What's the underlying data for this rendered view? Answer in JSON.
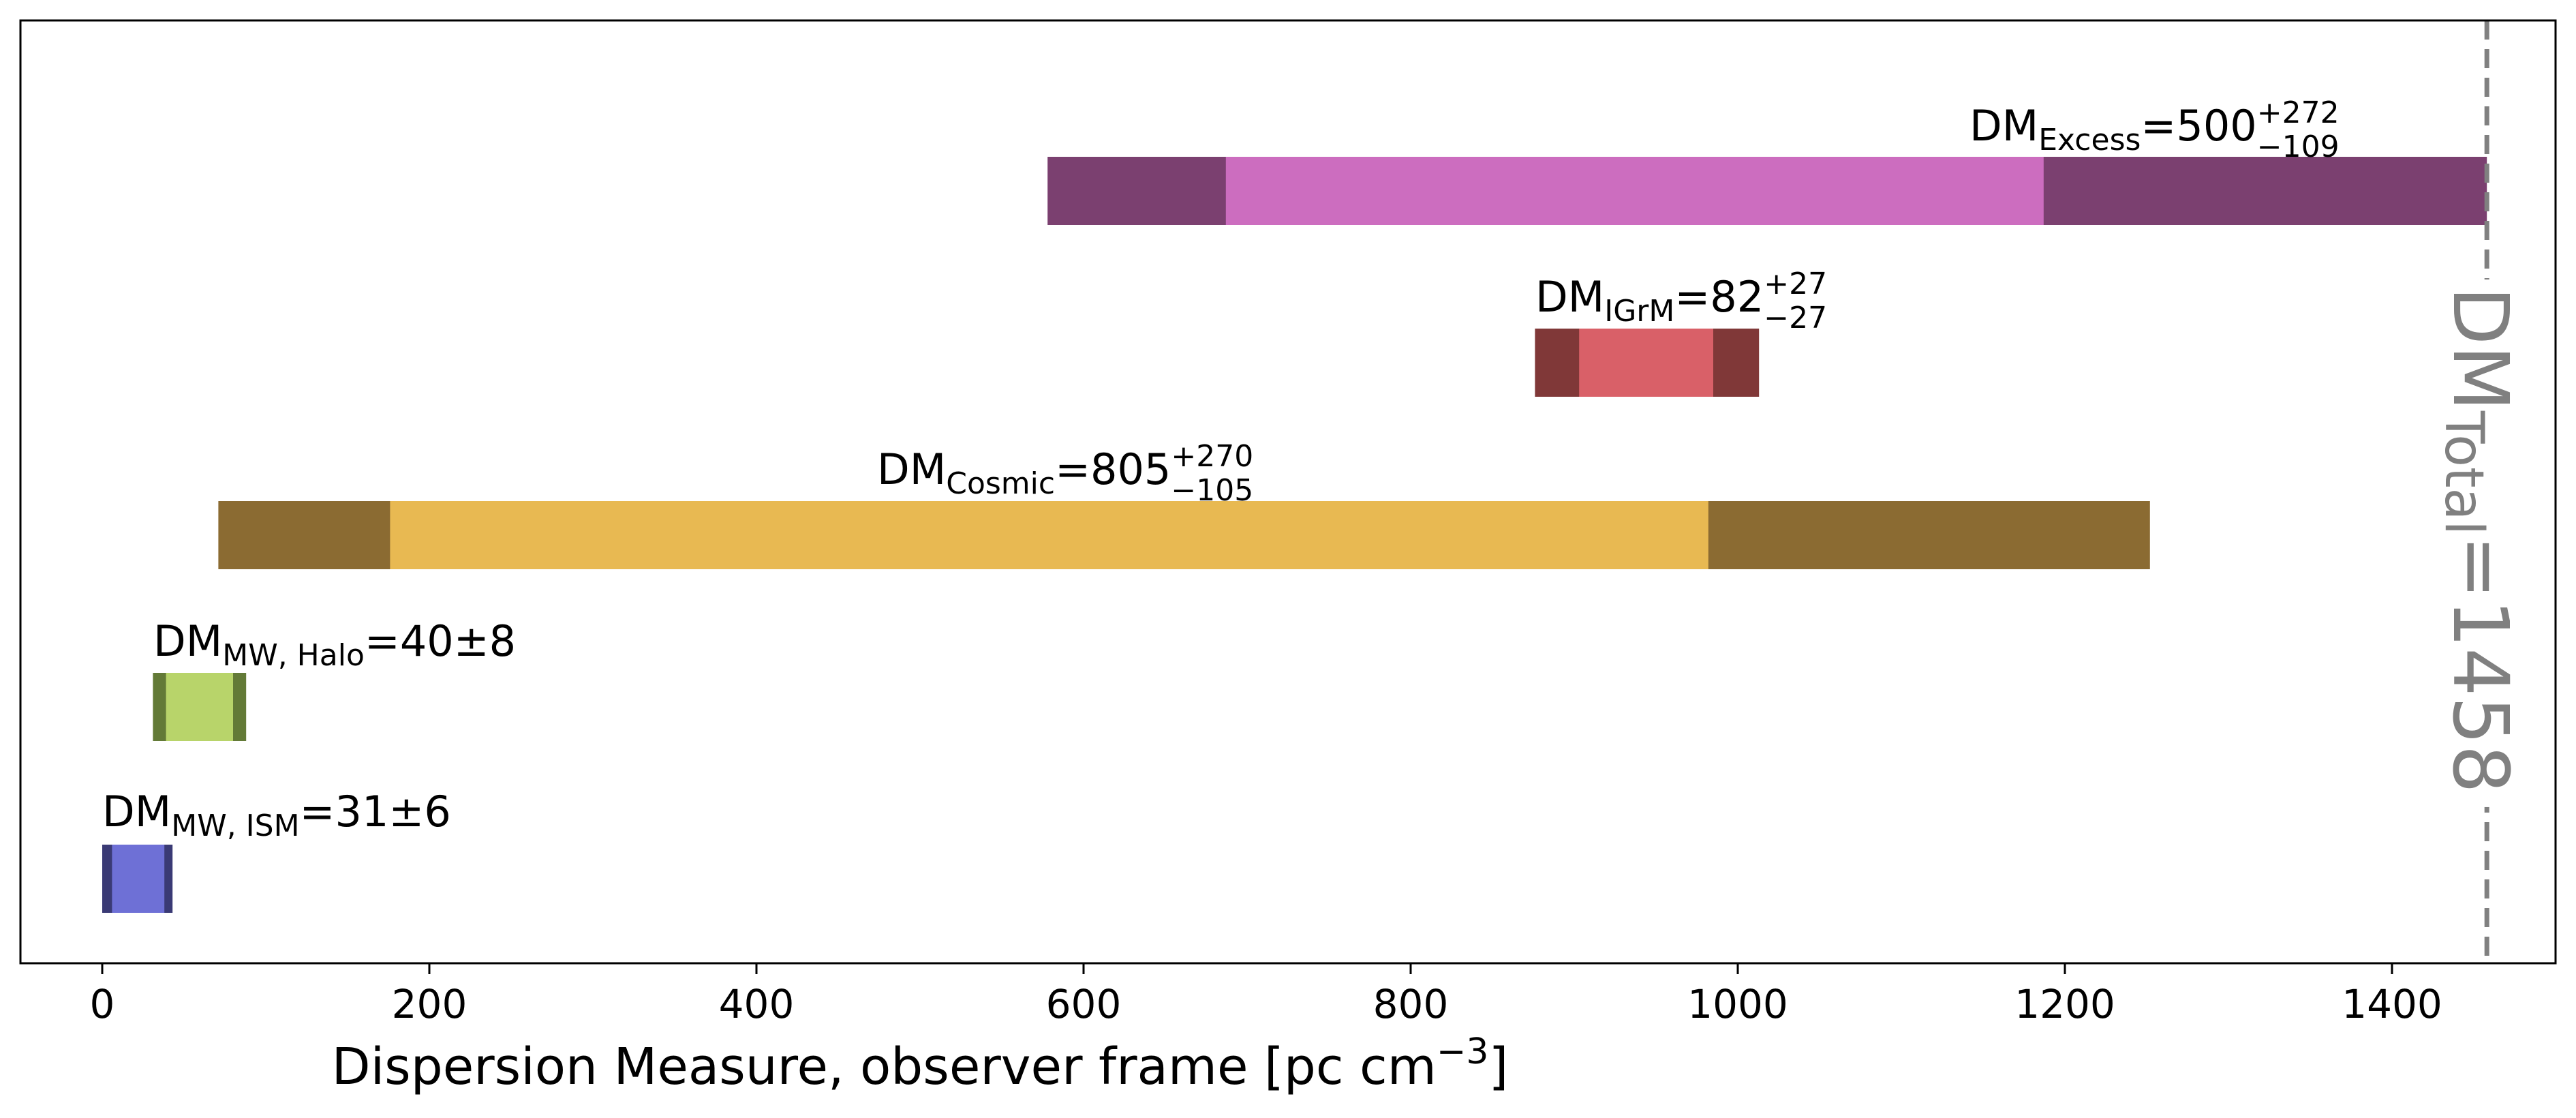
{
  "chart_data": {
    "type": "bar",
    "orientation": "horizontal",
    "xlabel": "Dispersion Measure, observer frame [pc cm",
    "xlabel_superscript": "−3",
    "xlabel_suffix": "]",
    "xlim": [
      -50,
      1500
    ],
    "xticks": [
      0,
      200,
      400,
      600,
      800,
      1000,
      1200,
      1400
    ],
    "grid": false,
    "legend": "none",
    "total": {
      "value": 1458,
      "label_main": "DM",
      "label_sub": "Total",
      "label_value": "=1458",
      "color": "#808080"
    },
    "series": [
      {
        "label_main": "DM",
        "label_sub": "Excess",
        "label_value": "=500",
        "label_sup": "+272",
        "label_low": "−109",
        "outer": [
          578,
          1458
        ],
        "inner": [
          687,
          1187
        ],
        "outer_color": "#7b4070",
        "inner_color": "#cc6dbf"
      },
      {
        "label_main": "DM",
        "label_sub": "IGrM",
        "label_value": "=82",
        "label_sup": "+27",
        "label_low": "−27",
        "outer": [
          876,
          1013
        ],
        "inner": [
          903,
          985
        ],
        "outer_color": "#803838",
        "inner_color": "#d96068"
      },
      {
        "label_main": "DM",
        "label_sub": "Cosmic",
        "label_value": "=805",
        "label_sup": "+270",
        "label_low": "−105",
        "outer": [
          71,
          1252
        ],
        "inner": [
          176,
          982
        ],
        "outer_color": "#8b6b32",
        "inner_color": "#e8b952"
      },
      {
        "label_main": "DM",
        "label_sub": "MW, Halo",
        "label_value": "=40±8",
        "label_sup": "",
        "label_low": "",
        "outer": [
          31,
          88
        ],
        "inner": [
          39,
          80
        ],
        "outer_color": "#637a37",
        "inner_color": "#b8d46a"
      },
      {
        "label_main": "DM",
        "label_sub": "MW, ISM",
        "label_value": "=31±6",
        "label_sup": "",
        "label_low": "",
        "outer": [
          0,
          43
        ],
        "inner": [
          6,
          38
        ],
        "outer_color": "#3a3a75",
        "inner_color": "#6e70d6"
      }
    ]
  }
}
